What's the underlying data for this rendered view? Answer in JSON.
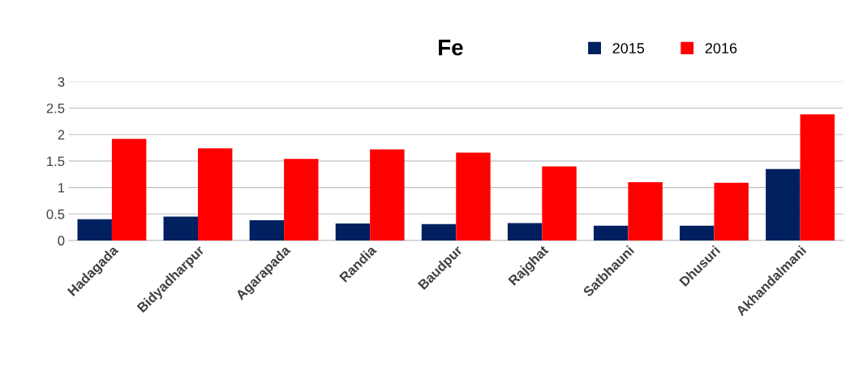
{
  "chart_data": {
    "type": "bar",
    "title": "Fe",
    "categories": [
      "Hadagada",
      "Bidyadharpur",
      "Agarapada",
      "Randia",
      "Baudpur",
      "Rajghat",
      "Satbhauni",
      "Dhusuri",
      "Akhandalmani"
    ],
    "series": [
      {
        "name": "2015",
        "color": "#002060",
        "values": [
          0.4,
          0.45,
          0.38,
          0.32,
          0.31,
          0.33,
          0.28,
          0.28,
          1.35
        ]
      },
      {
        "name": "2016",
        "color": "#ff0000",
        "values": [
          1.92,
          1.74,
          1.54,
          1.72,
          1.66,
          1.4,
          1.1,
          1.09,
          2.38
        ]
      }
    ],
    "ylim": [
      0,
      3
    ],
    "yticks": [
      0,
      0.5,
      1,
      1.5,
      2,
      2.5,
      3
    ],
    "grid": "y",
    "legend": "top"
  }
}
